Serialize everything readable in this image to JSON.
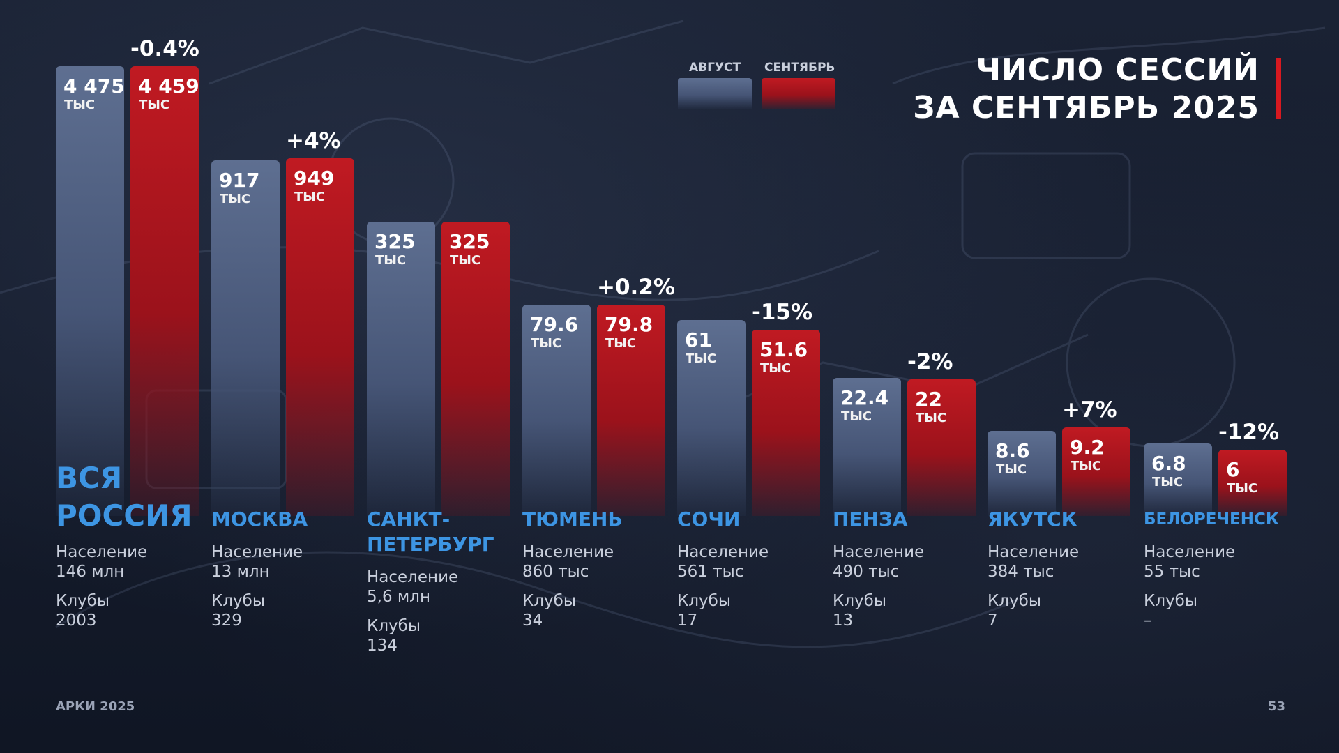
{
  "title": {
    "line1": "ЧИСЛО СЕССИЙ",
    "line2": "ЗА СЕНТЯБРЬ 2025",
    "accent_color": "#d71920"
  },
  "legend": {
    "august": "АВГУСТ",
    "september": "СЕНТЯБРЬ"
  },
  "footer": {
    "left": "АРКИ 2025",
    "page": "53"
  },
  "chart_data": {
    "type": "bar",
    "title": "ЧИСЛО СЕССИЙ ЗА СЕНТЯБРЬ 2025",
    "unit": "ТЫС",
    "legend_placement": "top",
    "grid": false,
    "series": [
      {
        "name": "АВГУСТ",
        "color": "#4f5f80"
      },
      {
        "name": "СЕНТЯБРЬ",
        "color": "#b3151d"
      }
    ],
    "groups": [
      {
        "city": "ВСЯ РОССИЯ",
        "august": 4475,
        "august_label": "4 475",
        "september": 4459,
        "september_label": "4 459",
        "change": "-0.4%",
        "population_label": "Население",
        "population": "146 млн",
        "clubs_label": "Клубы",
        "clubs": "2003"
      },
      {
        "city": "МОСКВА",
        "august": 917,
        "august_label": "917",
        "september": 949,
        "september_label": "949",
        "change": "+4%",
        "population_label": "Население",
        "population": "13 млн",
        "clubs_label": "Клубы",
        "clubs": "329"
      },
      {
        "city": "САНКТ-",
        "city_line2": "ПЕТЕРБУРГ",
        "august": 325,
        "august_label": "325",
        "september": 325,
        "september_label": "325",
        "change": "",
        "population_label": "Население",
        "population": "5,6 млн",
        "clubs_label": "Клубы",
        "clubs": "134"
      },
      {
        "city": "ТЮМЕНЬ",
        "august": 79.6,
        "august_label": "79.6",
        "september": 79.8,
        "september_label": "79.8",
        "change": "+0.2%",
        "population_label": "Население",
        "population": "860 тыс",
        "clubs_label": "Клубы",
        "clubs": "34"
      },
      {
        "city": "СОЧИ",
        "august": 61,
        "august_label": "61",
        "september": 51.6,
        "september_label": "51.6",
        "change": "-15%",
        "population_label": "Население",
        "population": "561 тыс",
        "clubs_label": "Клубы",
        "clubs": "17"
      },
      {
        "city": "ПЕНЗА",
        "august": 22.4,
        "august_label": "22.4",
        "september": 22,
        "september_label": "22",
        "change": "-2%",
        "population_label": "Население",
        "population": "490 тыс",
        "clubs_label": "Клубы",
        "clubs": "13"
      },
      {
        "city": "ЯКУТСК",
        "august": 8.6,
        "august_label": "8.6",
        "september": 9.2,
        "september_label": "9.2",
        "change": "+7%",
        "population_label": "Население",
        "population": "384 тыс",
        "clubs_label": "Клубы",
        "clubs": "7"
      },
      {
        "city": "БЕЛОРЕЧЕНСК",
        "august": 6.8,
        "august_label": "6.8",
        "september": 6,
        "september_label": "6",
        "change": "-12%",
        "population_label": "Население",
        "population": "55 тыс",
        "clubs_label": "Клубы",
        "clubs": "–"
      }
    ]
  }
}
